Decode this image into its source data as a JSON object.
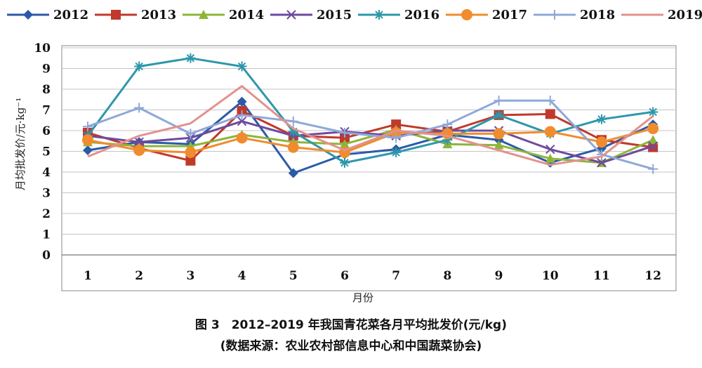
{
  "chart_data": {
    "type": "line",
    "x": [
      1,
      2,
      3,
      4,
      5,
      6,
      7,
      8,
      9,
      10,
      11,
      12
    ],
    "xlabel": "月份",
    "ylabel": "月均批发价/元·kg⁻¹",
    "ylim": [
      0,
      10
    ],
    "yticks": [
      0,
      1,
      2,
      3,
      4,
      5,
      6,
      7,
      8,
      9,
      10
    ],
    "grid": true,
    "legend_position": "top",
    "series": [
      {
        "name": "2012",
        "color": "#2b5aa8",
        "marker": "diamond",
        "values": [
          5.05,
          5.45,
          5.35,
          7.4,
          3.95,
          4.85,
          5.1,
          5.8,
          5.55,
          4.45,
          5.15,
          6.3
        ]
      },
      {
        "name": "2013",
        "color": "#c0392b",
        "marker": "square",
        "values": [
          5.9,
          5.15,
          4.55,
          6.95,
          5.75,
          5.65,
          6.3,
          5.95,
          6.75,
          6.8,
          5.55,
          5.2
        ]
      },
      {
        "name": "2014",
        "color": "#8db53a",
        "marker": "triangle",
        "values": [
          5.45,
          5.25,
          5.25,
          5.8,
          5.45,
          5.35,
          6.05,
          5.35,
          5.3,
          4.65,
          4.45,
          5.55
        ]
      },
      {
        "name": "2015",
        "color": "#6e4a9e",
        "marker": "x",
        "values": [
          5.75,
          5.45,
          5.65,
          6.45,
          5.75,
          5.95,
          5.75,
          6.0,
          6.0,
          5.1,
          4.45,
          5.25
        ]
      },
      {
        "name": "2016",
        "color": "#2e97ab",
        "marker": "asterisk",
        "values": [
          5.75,
          9.1,
          9.5,
          9.1,
          5.95,
          4.45,
          4.95,
          5.55,
          6.75,
          5.85,
          6.55,
          6.9
        ]
      },
      {
        "name": "2017",
        "color": "#f08c2e",
        "marker": "circle",
        "values": [
          5.55,
          5.05,
          4.95,
          5.65,
          5.2,
          4.95,
          5.9,
          5.85,
          5.85,
          5.95,
          5.45,
          6.1
        ]
      },
      {
        "name": "2018",
        "color": "#8fa8d8",
        "marker": "plus",
        "values": [
          6.2,
          7.1,
          5.85,
          6.75,
          6.45,
          5.9,
          5.65,
          6.3,
          7.45,
          7.45,
          4.85,
          4.15
        ]
      },
      {
        "name": "2019",
        "color": "#e2928e",
        "marker": "none",
        "values": [
          4.75,
          5.75,
          6.35,
          8.15,
          6.1,
          5.05,
          6.0,
          5.75,
          5.05,
          4.35,
          4.75,
          6.7
        ]
      }
    ]
  },
  "caption": {
    "title": "图 3　2012–2019 年我国青花菜各月平均批发价(元/kg)",
    "source": "(数据来源：农业农村部信息中心和中国蔬菜协会)"
  }
}
